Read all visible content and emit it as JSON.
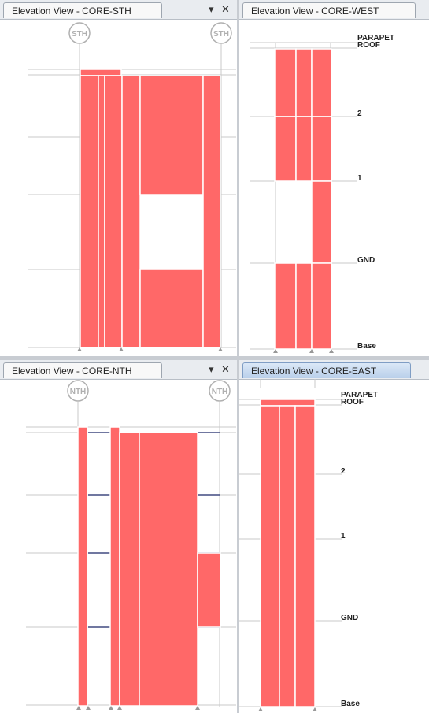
{
  "colors": {
    "element_fill": "#ff6868",
    "element_edge": "#ffffff",
    "grid_line": "#c8c8c8",
    "slab_edge": "#404a80",
    "bubble": "#b0b0b0"
  },
  "views": {
    "sth": {
      "title": "Elevation View - CORE-STH",
      "grid_start": "STH",
      "grid_end": "STH",
      "dropdown_icon": "triangle-down",
      "close_icon": "x"
    },
    "west": {
      "title": "Elevation View - CORE-WEST",
      "levels": [
        "PARAPET",
        "ROOF",
        "2",
        "1",
        "GND",
        "Base"
      ]
    },
    "nth": {
      "title": "Elevation View - CORE-NTH",
      "grid_start": "NTH",
      "grid_end": "NTH",
      "dropdown_icon": "triangle-down",
      "close_icon": "x"
    },
    "east": {
      "title": "Elevation View - CORE-EAST",
      "active": true,
      "levels": [
        "PARAPET",
        "ROOF",
        "2",
        "1",
        "GND",
        "Base"
      ]
    }
  }
}
